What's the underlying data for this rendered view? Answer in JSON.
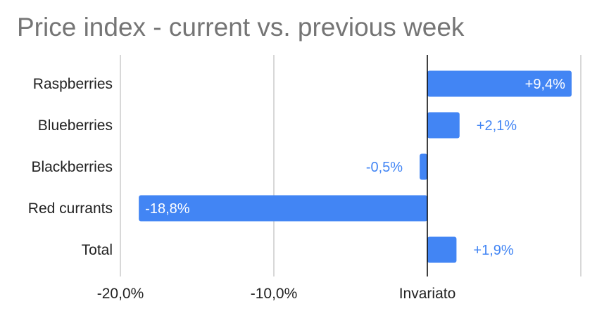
{
  "colors": {
    "bar": "#4285f4",
    "label_inside": "#ffffff",
    "label_outside": "#4285f4",
    "gridline": "#cccccc",
    "zero_line": "#000000",
    "title": "#757575"
  },
  "chart_data": {
    "type": "bar",
    "orientation": "horizontal",
    "title": "Price index - current vs. previous week",
    "categories": [
      "Raspberries",
      "Blueberries",
      "Blackberries",
      "Red currants",
      "Total"
    ],
    "values": [
      9.4,
      2.1,
      -0.5,
      -18.8,
      1.9
    ],
    "data_labels": [
      "+9,4%",
      "+2,1%",
      "-0,5%",
      "-18,8%",
      "+1,9%"
    ],
    "xlim": [
      -20,
      10
    ],
    "x_ticks": [
      -20,
      -10,
      0,
      10
    ],
    "x_tick_labels": [
      "-20,0%",
      "-10,0%",
      "Invariato",
      ""
    ],
    "grid": true,
    "legend": "none"
  }
}
